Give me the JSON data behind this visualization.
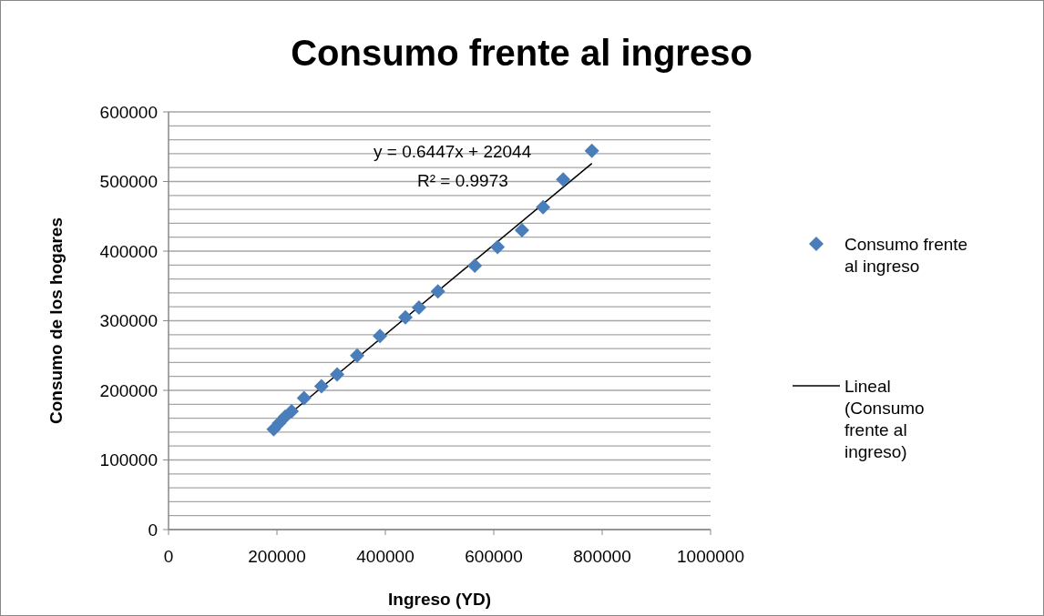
{
  "chart_data": {
    "type": "scatter",
    "title": "Consumo frente al ingreso",
    "xlabel": "Ingreso (YD)",
    "ylabel": "Consumo de los hogares",
    "xlim": [
      0,
      1000000
    ],
    "xticks": [
      0,
      200000,
      400000,
      600000,
      800000,
      1000000
    ],
    "ylim": [
      0,
      600000
    ],
    "yticks": [
      0,
      {
        "value": 20000,
        "label": null
      },
      {
        "value": 40000,
        "label": null
      },
      {
        "value": 60000,
        "label": null
      },
      {
        "value": 80000,
        "label": null
      },
      100000,
      {
        "value": 120000,
        "label": null
      },
      {
        "value": 140000,
        "label": null
      },
      {
        "value": 160000,
        "label": null
      },
      {
        "value": 180000,
        "label": null
      },
      200000,
      {
        "value": 220000,
        "label": null
      },
      {
        "value": 240000,
        "label": null
      },
      {
        "value": 260000,
        "label": null
      },
      {
        "value": 280000,
        "label": null
      },
      300000,
      {
        "value": 320000,
        "label": null
      },
      {
        "value": 340000,
        "label": null
      },
      {
        "value": 360000,
        "label": null
      },
      {
        "value": 380000,
        "label": null
      },
      400000,
      {
        "value": 420000,
        "label": null
      },
      {
        "value": 440000,
        "label": null
      },
      {
        "value": 460000,
        "label": null
      },
      {
        "value": 480000,
        "label": null
      },
      500000,
      {
        "value": 520000,
        "label": null
      },
      {
        "value": 540000,
        "label": null
      },
      {
        "value": 560000,
        "label": null
      },
      {
        "value": 580000,
        "label": null
      },
      600000
    ],
    "grid": "y",
    "legend": "right",
    "annotations": [
      "y = 0.6447x + 22044",
      "R² = 0.9973"
    ],
    "series": [
      {
        "name": "Consumo frente al ingreso",
        "marker": "diamond",
        "color": "#4a7ebb",
        "x": [
          194000,
          204000,
          215000,
          227000,
          250000,
          282000,
          311000,
          348000,
          390000,
          437000,
          462000,
          497000,
          565000,
          607000,
          652000,
          691000,
          728000,
          781000
        ],
        "values": [
          144000,
          153000,
          162000,
          170000,
          189000,
          206000,
          223000,
          250000,
          278000,
          305000,
          319000,
          342000,
          379000,
          406000,
          430000,
          463000,
          503000,
          544000
        ]
      },
      {
        "name": "Lineal (Consumo frente al ingreso)",
        "type": "line",
        "color": "#000000",
        "x": [
          194000,
          781000
        ],
        "values": [
          147000,
          526000
        ]
      }
    ]
  }
}
